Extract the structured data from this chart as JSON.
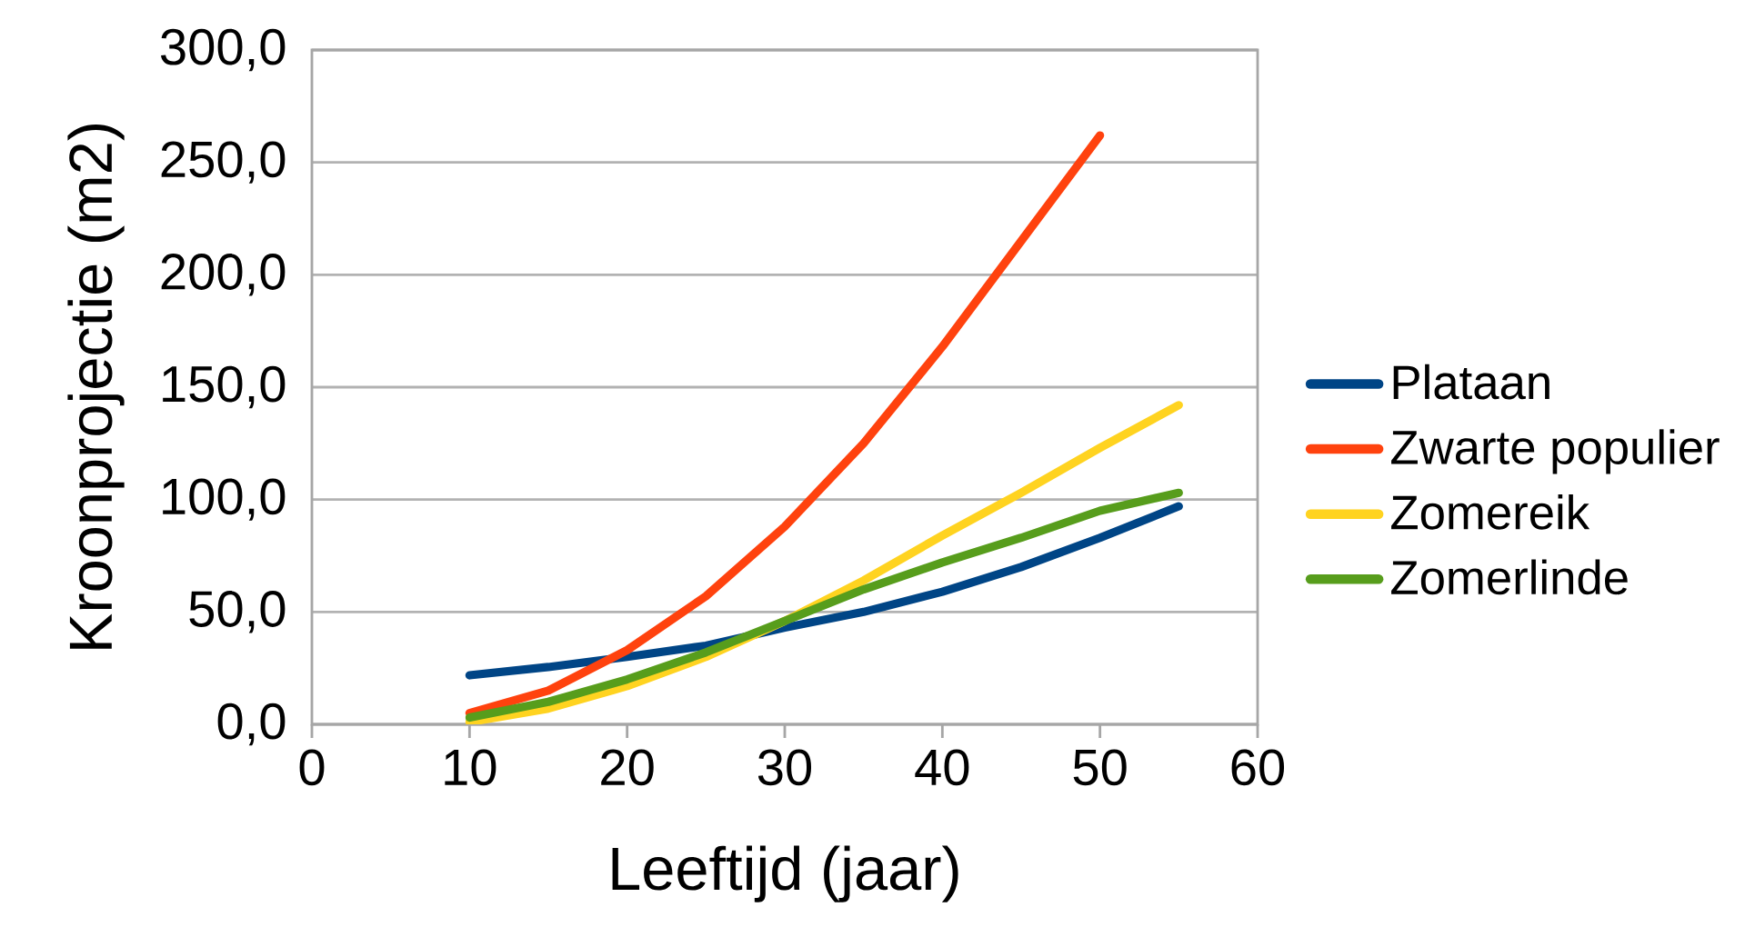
{
  "chart_data": {
    "type": "line",
    "xlabel": "Leeftijd (jaar)",
    "ylabel": "Kroonprojectie (m2)",
    "x": [
      10,
      15,
      20,
      25,
      30,
      35,
      40,
      45,
      50,
      55
    ],
    "series": [
      {
        "name": "Plataan",
        "color": "#004586",
        "values": [
          21.8,
          25.5,
          30,
          35,
          43,
          50,
          59,
          70,
          83,
          97
        ]
      },
      {
        "name": "Zwarte populier",
        "color": "#ff420e",
        "values": [
          5,
          15,
          33,
          57,
          88,
          125,
          168,
          215,
          262,
          null
        ]
      },
      {
        "name": "Zomereik",
        "color": "#ffd320",
        "values": [
          1,
          7,
          17,
          30,
          46,
          64,
          84,
          103,
          123,
          142
        ]
      },
      {
        "name": "Zomerlinde",
        "color": "#579d1c",
        "values": [
          3,
          10,
          20,
          32,
          46,
          60,
          72,
          83,
          95,
          103
        ]
      }
    ],
    "xlim": [
      0,
      60
    ],
    "xticks": [
      0,
      10,
      20,
      30,
      40,
      50,
      60
    ],
    "ylim": [
      0,
      300
    ],
    "yticks": [
      {
        "value": 0,
        "label": "0,0"
      },
      {
        "value": 50,
        "label": "50,0"
      },
      {
        "value": 100,
        "label": "100,0"
      },
      {
        "value": 150,
        "label": "150,0"
      },
      {
        "value": 200,
        "label": "200,0"
      },
      {
        "value": 250,
        "label": "250,0"
      },
      {
        "value": 300,
        "label": "300,0"
      }
    ],
    "grid": "y",
    "legend": "right",
    "marker": "none",
    "line_style": "solid"
  }
}
